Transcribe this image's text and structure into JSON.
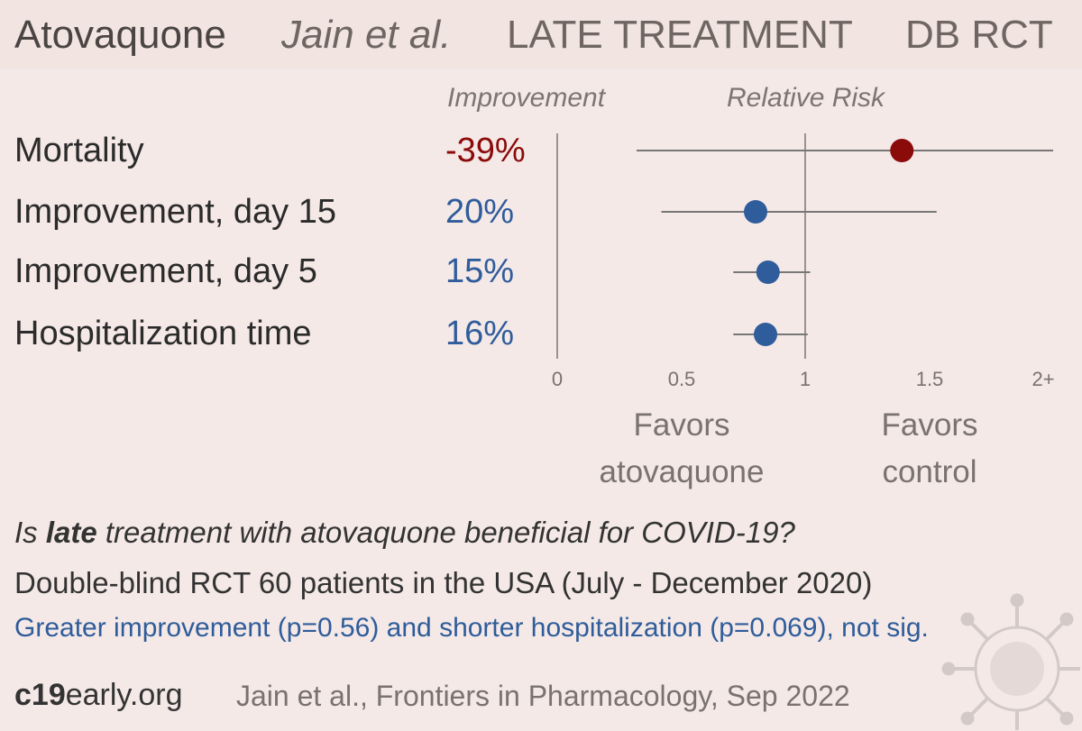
{
  "header": {
    "drug": "Atovaquone",
    "authors": "Jain et al.",
    "stage": "LATE TREATMENT",
    "design": "DB RCT"
  },
  "columns": {
    "improvement": "Improvement",
    "relative_risk": "Relative Risk"
  },
  "favors": {
    "left": [
      "Favors",
      "atovaquone"
    ],
    "right": [
      "Favors",
      "control"
    ]
  },
  "colors": {
    "harm": "#8b0a0a",
    "benefit": "#2f5c9a",
    "whisker": "#777777",
    "axis": "#9a9290"
  },
  "chart_data": {
    "type": "forest",
    "title": "",
    "xlabel": "Relative Risk",
    "xlim": [
      0,
      2
    ],
    "x_ticks": [
      "0",
      "0.5",
      "1",
      "1.5",
      "2+"
    ],
    "reference_line": 1,
    "rows": [
      {
        "label": "Mortality",
        "improvement": "-39%",
        "rr": 1.39,
        "ci": [
          0.32,
          2.0
        ],
        "ci_open_high": true,
        "direction": "harm"
      },
      {
        "label": "Improvement, day 15",
        "improvement": "20%",
        "rr": 0.8,
        "ci": [
          0.42,
          1.53
        ],
        "direction": "benefit"
      },
      {
        "label": "Improvement, day 5",
        "improvement": "15%",
        "rr": 0.85,
        "ci": [
          0.71,
          1.02
        ],
        "direction": "benefit"
      },
      {
        "label": "Hospitalization time",
        "improvement": "16%",
        "rr": 0.84,
        "ci": [
          0.71,
          1.01
        ],
        "direction": "benefit"
      }
    ]
  },
  "summary": {
    "q_pre": "Is ",
    "q_bold": "late",
    "q_post": " treatment with atovaquone beneficial for COVID-19?",
    "design": "Double-blind RCT 60 patients in the USA (July - December 2020)",
    "result": "Greater improvement (p=0.56) and shorter hospitalization (p=0.069), not sig."
  },
  "footer": {
    "site_bold": "c19",
    "site_rest": "early.org",
    "citation": "Jain et al., Frontiers in Pharmacology, Sep 2022"
  }
}
